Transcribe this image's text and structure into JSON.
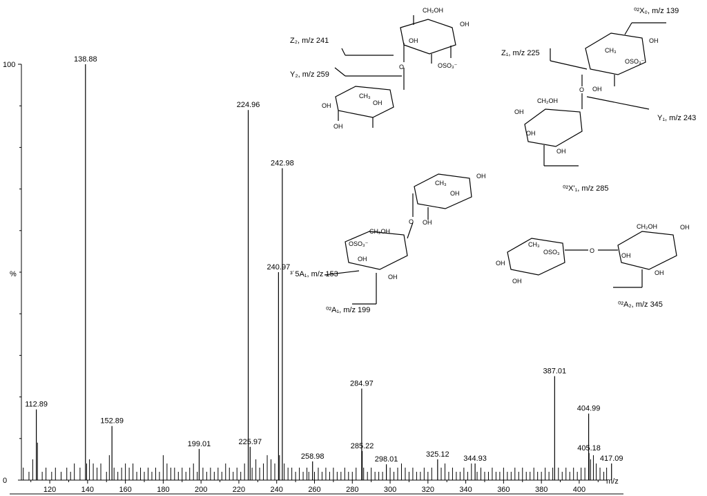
{
  "chart_data": {
    "type": "bar",
    "xlabel": "m/z",
    "ylabel": "%",
    "xlim": [
      105,
      415
    ],
    "ylim": [
      0,
      100
    ],
    "x_ticks": [
      120,
      140,
      160,
      180,
      200,
      220,
      240,
      260,
      280,
      300,
      320,
      340,
      360,
      380,
      400
    ],
    "y_ticks": [
      0,
      100
    ],
    "grid": false,
    "labeled_peaks": [
      {
        "x": 112.89,
        "y": 17,
        "label": "112.89"
      },
      {
        "x": 138.88,
        "y": 100,
        "label": "138.88"
      },
      {
        "x": 152.89,
        "y": 13,
        "label": "152.89"
      },
      {
        "x": 199.01,
        "y": 7.5,
        "label": "199.01"
      },
      {
        "x": 224.96,
        "y": 89,
        "label": "224.96"
      },
      {
        "x": 225.97,
        "y": 8,
        "label": "225.97"
      },
      {
        "x": 240.97,
        "y": 50,
        "label": "240.97"
      },
      {
        "x": 242.98,
        "y": 75,
        "label": "242.98"
      },
      {
        "x": 258.98,
        "y": 4.5,
        "label": "258.98"
      },
      {
        "x": 284.97,
        "y": 22,
        "label": "284.97"
      },
      {
        "x": 285.22,
        "y": 7,
        "label": "285.22"
      },
      {
        "x": 298.01,
        "y": 3.8,
        "label": "298.01"
      },
      {
        "x": 325.12,
        "y": 5,
        "label": "325.12"
      },
      {
        "x": 344.93,
        "y": 4,
        "label": "344.93"
      },
      {
        "x": 387.01,
        "y": 25,
        "label": "387.01"
      },
      {
        "x": 404.99,
        "y": 16,
        "label": "404.99"
      },
      {
        "x": 405.18,
        "y": 6.5,
        "label": "405.18"
      },
      {
        "x": 417.09,
        "y": 4,
        "label": "417.09"
      }
    ],
    "minor_peaks": [
      [
        106,
        3
      ],
      [
        109,
        2
      ],
      [
        111,
        5
      ],
      [
        113.5,
        9
      ],
      [
        116,
        2
      ],
      [
        118,
        3
      ],
      [
        121,
        2
      ],
      [
        123,
        3
      ],
      [
        126,
        2
      ],
      [
        129,
        3
      ],
      [
        131,
        2
      ],
      [
        133,
        4
      ],
      [
        136,
        3
      ],
      [
        139.5,
        4
      ],
      [
        141,
        5
      ],
      [
        143,
        4
      ],
      [
        145,
        3
      ],
      [
        147,
        4
      ],
      [
        150,
        2
      ],
      [
        151.5,
        6
      ],
      [
        154,
        3
      ],
      [
        156,
        2
      ],
      [
        158,
        3
      ],
      [
        160,
        4
      ],
      [
        162,
        3
      ],
      [
        164,
        4
      ],
      [
        166,
        2
      ],
      [
        168,
        3
      ],
      [
        170,
        2
      ],
      [
        172,
        3
      ],
      [
        174,
        2
      ],
      [
        176,
        3
      ],
      [
        178,
        2
      ],
      [
        180,
        6
      ],
      [
        182,
        4
      ],
      [
        184,
        3
      ],
      [
        186,
        3
      ],
      [
        188,
        2
      ],
      [
        190,
        3
      ],
      [
        192,
        2
      ],
      [
        194,
        3
      ],
      [
        196,
        4
      ],
      [
        198,
        2
      ],
      [
        201,
        3
      ],
      [
        203,
        2
      ],
      [
        205,
        3
      ],
      [
        207,
        2
      ],
      [
        209,
        3
      ],
      [
        211,
        2
      ],
      [
        213,
        4
      ],
      [
        215,
        3
      ],
      [
        217,
        2
      ],
      [
        219,
        3
      ],
      [
        221,
        2
      ],
      [
        223,
        4
      ],
      [
        227,
        3
      ],
      [
        229,
        5
      ],
      [
        231,
        3
      ],
      [
        233,
        4
      ],
      [
        235,
        6
      ],
      [
        237,
        5
      ],
      [
        239,
        4
      ],
      [
        241.5,
        6
      ],
      [
        244,
        4
      ],
      [
        246,
        3
      ],
      [
        248,
        3
      ],
      [
        250,
        2
      ],
      [
        252,
        3
      ],
      [
        254,
        2
      ],
      [
        256,
        3
      ],
      [
        257,
        2
      ],
      [
        260,
        2
      ],
      [
        262,
        3
      ],
      [
        264,
        2
      ],
      [
        266,
        3
      ],
      [
        268,
        2
      ],
      [
        270,
        3
      ],
      [
        272,
        2
      ],
      [
        274,
        2
      ],
      [
        276,
        3
      ],
      [
        278,
        2
      ],
      [
        280,
        2
      ],
      [
        282,
        3
      ],
      [
        286,
        3
      ],
      [
        288,
        2
      ],
      [
        290,
        3
      ],
      [
        292,
        2
      ],
      [
        294,
        2
      ],
      [
        296,
        2
      ],
      [
        300,
        3
      ],
      [
        302,
        2
      ],
      [
        304,
        3
      ],
      [
        306,
        4
      ],
      [
        308,
        3
      ],
      [
        310,
        2
      ],
      [
        312,
        3
      ],
      [
        314,
        2
      ],
      [
        316,
        2
      ],
      [
        318,
        3
      ],
      [
        320,
        2
      ],
      [
        322,
        3
      ],
      [
        327,
        3
      ],
      [
        329,
        4
      ],
      [
        331,
        2
      ],
      [
        333,
        3
      ],
      [
        335,
        2
      ],
      [
        337,
        2
      ],
      [
        339,
        3
      ],
      [
        341,
        2
      ],
      [
        343,
        4
      ],
      [
        346,
        2
      ],
      [
        348,
        3
      ],
      [
        350,
        2
      ],
      [
        352,
        2
      ],
      [
        354,
        3
      ],
      [
        356,
        2
      ],
      [
        358,
        2
      ],
      [
        360,
        3
      ],
      [
        362,
        2
      ],
      [
        364,
        2
      ],
      [
        366,
        3
      ],
      [
        368,
        2
      ],
      [
        370,
        3
      ],
      [
        372,
        2
      ],
      [
        374,
        2
      ],
      [
        376,
        3
      ],
      [
        378,
        2
      ],
      [
        380,
        2
      ],
      [
        382,
        3
      ],
      [
        384,
        2
      ],
      [
        386,
        3
      ],
      [
        389,
        3
      ],
      [
        391,
        2
      ],
      [
        393,
        3
      ],
      [
        395,
        2
      ],
      [
        397,
        3
      ],
      [
        399,
        2
      ],
      [
        401,
        3
      ],
      [
        403,
        3
      ],
      [
        406,
        5
      ],
      [
        407.5,
        6
      ],
      [
        409,
        4
      ],
      [
        411,
        3
      ],
      [
        413,
        2
      ],
      [
        414.5,
        3
      ]
    ]
  },
  "structures": {
    "s1": {
      "ch2oh": "CH₂OH",
      "oh_top": "OH",
      "oh_ring": "OH",
      "oso3": "OSO₃⁻",
      "o_link": "O",
      "z2": "Z₂, m/z 241",
      "y2": "Y₂, m/z 259",
      "ch3": "CH₃",
      "oh_a": "OH",
      "oh_b": "OH",
      "oh_c": "OH"
    },
    "s2": {
      "x0": "⁰²X₀, m/z 139",
      "z1": "Z₁, m/z 225",
      "ch3": "CH₃",
      "oso3": "OSO₃⁻",
      "oh_top": "OH",
      "oh_ring": "OH",
      "o_link": "O",
      "y1": "Y₁, m/z 243",
      "ch2oh": "CH₂OH",
      "oh_a": "OH",
      "oh_b": "OH",
      "oh_c": "OH",
      "x1": "⁰²X'₁, m/z 285"
    },
    "s3": {
      "ch3": "CH₃",
      "oh_top": "OH",
      "oh_a": "OH",
      "oh_b": "OH",
      "o_link": "O",
      "ch2oh": "CH₂OH",
      "oso3": "OSO₃⁻",
      "oh_c": "OH",
      "oh_d": "OH",
      "a1_35": "³˙5A₁, m/z 153",
      "a1_02": "⁰²A₁, m/z 199"
    },
    "s4": {
      "ch3": "CH₃",
      "oso3": "OSO₃",
      "oh_a": "OH",
      "oh_b": "OH",
      "o_link": "O",
      "ch2oh": "CH₂OH",
      "oh_top": "OH",
      "oh_c": "OH",
      "oh_d": "OH",
      "a2": "⁰²A₂, m/z 345"
    }
  }
}
